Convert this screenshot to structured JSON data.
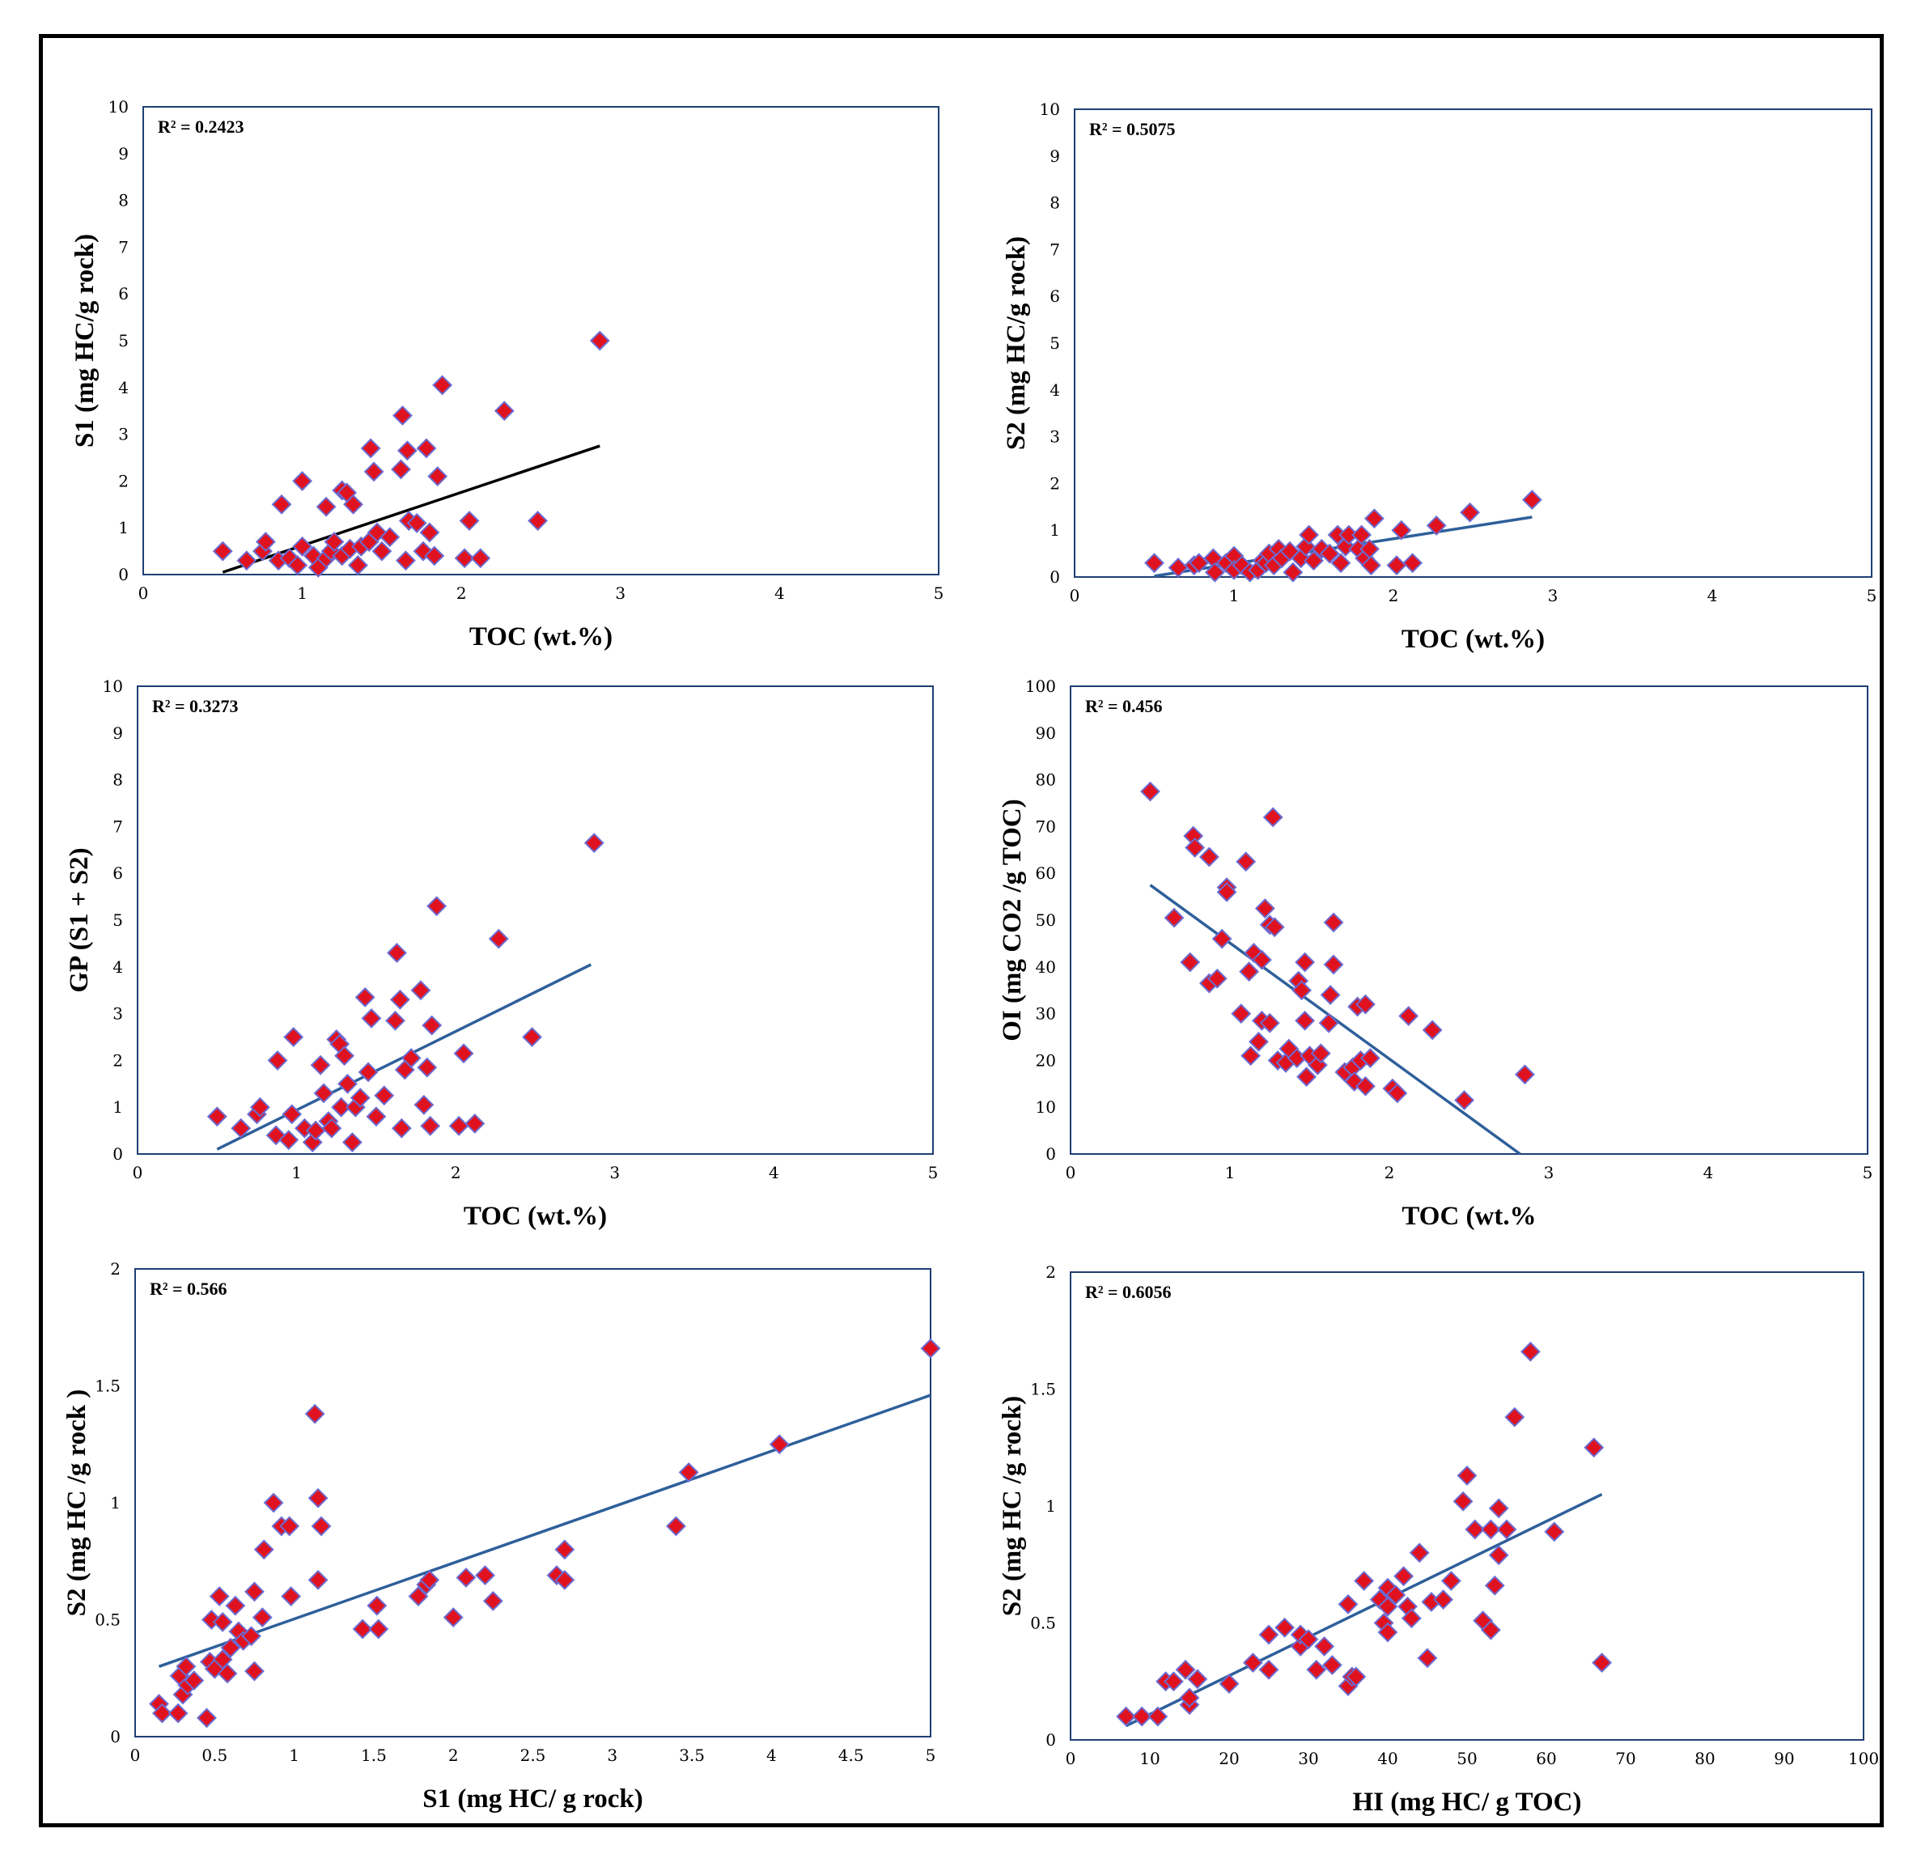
{
  "colors": {
    "marker_fill": "#e0121f",
    "marker_edge": "#6b6bd0",
    "trend_blue": "#2e5f9a",
    "trend_black": "#000000",
    "plot_border": "#1f3f73"
  },
  "chart_data": [
    {
      "type": "scatter",
      "title": "",
      "xlabel": "TOC (wt.%)",
      "ylabel": "S1 (mg HC/g rock)",
      "annotation": "R² = 0.2423",
      "xlim": [
        0,
        5
      ],
      "ylim": [
        0,
        10
      ],
      "xticks": [
        "0",
        "1",
        "2",
        "3",
        "4",
        "5"
      ],
      "yticks": [
        "0",
        "1",
        "2",
        "3",
        "4",
        "5",
        "6",
        "7",
        "8",
        "9",
        "10"
      ],
      "trendline": {
        "color": "black",
        "x": [
          0.5,
          2.87
        ],
        "y": [
          0.05,
          2.75
        ]
      },
      "points": [
        [
          0.5,
          0.5
        ],
        [
          0.65,
          0.3
        ],
        [
          0.75,
          0.5
        ],
        [
          0.77,
          0.7
        ],
        [
          0.85,
          0.3
        ],
        [
          0.87,
          1.5
        ],
        [
          0.92,
          0.35
        ],
        [
          0.97,
          0.2
        ],
        [
          1.0,
          0.6
        ],
        [
          1.0,
          2.0
        ],
        [
          1.07,
          0.4
        ],
        [
          1.1,
          0.15
        ],
        [
          1.15,
          0.35
        ],
        [
          1.15,
          1.45
        ],
        [
          1.18,
          0.5
        ],
        [
          1.2,
          0.7
        ],
        [
          1.25,
          0.4
        ],
        [
          1.25,
          1.8
        ],
        [
          1.28,
          1.75
        ],
        [
          1.3,
          0.55
        ],
        [
          1.32,
          1.5
        ],
        [
          1.35,
          0.2
        ],
        [
          1.37,
          0.6
        ],
        [
          1.42,
          0.7
        ],
        [
          1.43,
          2.7
        ],
        [
          1.45,
          2.2
        ],
        [
          1.47,
          0.9
        ],
        [
          1.5,
          0.5
        ],
        [
          1.55,
          0.8
        ],
        [
          1.62,
          2.25
        ],
        [
          1.63,
          3.4
        ],
        [
          1.65,
          0.3
        ],
        [
          1.66,
          2.65
        ],
        [
          1.67,
          1.15
        ],
        [
          1.72,
          1.1
        ],
        [
          1.76,
          0.5
        ],
        [
          1.78,
          2.7
        ],
        [
          1.8,
          0.9
        ],
        [
          1.83,
          0.4
        ],
        [
          1.85,
          2.1
        ],
        [
          1.88,
          4.05
        ],
        [
          2.02,
          0.35
        ],
        [
          2.05,
          1.15
        ],
        [
          2.12,
          0.35
        ],
        [
          2.27,
          3.5
        ],
        [
          2.48,
          1.15
        ],
        [
          2.87,
          5.0
        ]
      ]
    },
    {
      "type": "scatter",
      "title": "",
      "xlabel": "TOC (wt.%)",
      "ylabel": "S2 (mg HC/g rock)",
      "annotation": "R² = 0.5075",
      "xlim": [
        0,
        5
      ],
      "ylim": [
        0,
        10
      ],
      "xticks": [
        "0",
        "1",
        "2",
        "3",
        "4",
        "5"
      ],
      "yticks": [
        "0",
        "1",
        "2",
        "3",
        "4",
        "5",
        "6",
        "7",
        "8",
        "9",
        "10"
      ],
      "trendline": {
        "color": "blue",
        "x": [
          0.5,
          2.87
        ],
        "y": [
          0.02,
          1.28
        ]
      },
      "points": [
        [
          0.5,
          0.3
        ],
        [
          0.65,
          0.2
        ],
        [
          0.75,
          0.25
        ],
        [
          0.78,
          0.3
        ],
        [
          0.87,
          0.4
        ],
        [
          0.88,
          0.1
        ],
        [
          0.95,
          0.3
        ],
        [
          1.0,
          0.45
        ],
        [
          1.0,
          0.15
        ],
        [
          1.05,
          0.25
        ],
        [
          1.1,
          0.1
        ],
        [
          1.15,
          0.15
        ],
        [
          1.18,
          0.35
        ],
        [
          1.2,
          0.3
        ],
        [
          1.22,
          0.5
        ],
        [
          1.25,
          0.25
        ],
        [
          1.28,
          0.6
        ],
        [
          1.3,
          0.4
        ],
        [
          1.35,
          0.55
        ],
        [
          1.37,
          0.1
        ],
        [
          1.42,
          0.4
        ],
        [
          1.45,
          0.65
        ],
        [
          1.47,
          0.9
        ],
        [
          1.5,
          0.35
        ],
        [
          1.55,
          0.6
        ],
        [
          1.6,
          0.5
        ],
        [
          1.65,
          0.9
        ],
        [
          1.67,
          0.3
        ],
        [
          1.7,
          0.65
        ],
        [
          1.72,
          0.9
        ],
        [
          1.78,
          0.6
        ],
        [
          1.8,
          0.9
        ],
        [
          1.82,
          0.4
        ],
        [
          1.85,
          0.6
        ],
        [
          1.86,
          0.25
        ],
        [
          1.88,
          1.25
        ],
        [
          2.02,
          0.25
        ],
        [
          2.05,
          1.0
        ],
        [
          2.12,
          0.3
        ],
        [
          2.27,
          1.1
        ],
        [
          2.48,
          1.38
        ],
        [
          2.87,
          1.65
        ]
      ]
    },
    {
      "type": "scatter",
      "title": "",
      "xlabel": "TOC (wt.%)",
      "ylabel": "GP (S1 + S2)",
      "annotation": "R² = 0.3273",
      "xlim": [
        0,
        5
      ],
      "ylim": [
        0,
        10
      ],
      "xticks": [
        "0",
        "1",
        "2",
        "3",
        "4",
        "5"
      ],
      "yticks": [
        "0",
        "1",
        "2",
        "3",
        "4",
        "5",
        "6",
        "7",
        "8",
        "9",
        "10"
      ],
      "trendline": {
        "color": "blue",
        "x": [
          0.5,
          2.85
        ],
        "y": [
          0.1,
          4.05
        ]
      },
      "points": [
        [
          0.5,
          0.8
        ],
        [
          0.65,
          0.55
        ],
        [
          0.75,
          0.85
        ],
        [
          0.77,
          1.0
        ],
        [
          0.87,
          0.4
        ],
        [
          0.88,
          2.0
        ],
        [
          0.95,
          0.3
        ],
        [
          0.97,
          0.85
        ],
        [
          0.98,
          2.5
        ],
        [
          1.05,
          0.55
        ],
        [
          1.1,
          0.25
        ],
        [
          1.12,
          0.5
        ],
        [
          1.15,
          1.9
        ],
        [
          1.17,
          1.3
        ],
        [
          1.2,
          0.7
        ],
        [
          1.22,
          0.55
        ],
        [
          1.25,
          2.45
        ],
        [
          1.27,
          2.35
        ],
        [
          1.28,
          1.0
        ],
        [
          1.3,
          2.1
        ],
        [
          1.32,
          1.5
        ],
        [
          1.35,
          0.25
        ],
        [
          1.37,
          1.0
        ],
        [
          1.4,
          1.2
        ],
        [
          1.43,
          3.35
        ],
        [
          1.45,
          1.75
        ],
        [
          1.47,
          2.9
        ],
        [
          1.5,
          0.8
        ],
        [
          1.55,
          1.25
        ],
        [
          1.62,
          2.85
        ],
        [
          1.63,
          4.3
        ],
        [
          1.65,
          3.3
        ],
        [
          1.66,
          0.55
        ],
        [
          1.68,
          1.8
        ],
        [
          1.72,
          2.05
        ],
        [
          1.78,
          3.5
        ],
        [
          1.8,
          1.05
        ],
        [
          1.82,
          1.85
        ],
        [
          1.84,
          0.6
        ],
        [
          1.85,
          2.75
        ],
        [
          1.88,
          5.3
        ],
        [
          2.02,
          0.6
        ],
        [
          2.05,
          2.15
        ],
        [
          2.12,
          0.65
        ],
        [
          2.27,
          4.6
        ],
        [
          2.48,
          2.5
        ],
        [
          2.87,
          6.65
        ]
      ]
    },
    {
      "type": "scatter",
      "title": "",
      "xlabel": "TOC (wt.%",
      "ylabel": "OI (mg CO2 /g TOC)",
      "annotation": "R² = 0.456",
      "xlim": [
        0,
        5
      ],
      "ylim": [
        0,
        100
      ],
      "xticks": [
        "0",
        "1",
        "2",
        "3",
        "4",
        "5"
      ],
      "yticks": [
        "0",
        "10",
        "20",
        "30",
        "40",
        "50",
        "60",
        "70",
        "80",
        "90",
        "100"
      ],
      "trendline": {
        "color": "blue",
        "x": [
          0.5,
          2.82
        ],
        "y": [
          57.5,
          0
        ]
      },
      "points": [
        [
          0.5,
          77.5
        ],
        [
          0.65,
          50.5
        ],
        [
          0.75,
          41
        ],
        [
          0.77,
          68
        ],
        [
          0.78,
          65.5
        ],
        [
          0.87,
          63.5
        ],
        [
          0.87,
          36.5
        ],
        [
          0.92,
          37.5
        ],
        [
          0.95,
          46
        ],
        [
          0.98,
          57
        ],
        [
          0.98,
          56
        ],
        [
          1.07,
          30
        ],
        [
          1.1,
          62.5
        ],
        [
          1.12,
          39
        ],
        [
          1.13,
          21
        ],
        [
          1.15,
          43
        ],
        [
          1.18,
          24
        ],
        [
          1.2,
          41.5
        ],
        [
          1.2,
          28.5
        ],
        [
          1.22,
          52.5
        ],
        [
          1.25,
          28
        ],
        [
          1.25,
          49
        ],
        [
          1.27,
          72
        ],
        [
          1.28,
          48.5
        ],
        [
          1.3,
          20
        ],
        [
          1.35,
          19.5
        ],
        [
          1.37,
          22.5
        ],
        [
          1.42,
          20.5
        ],
        [
          1.43,
          37
        ],
        [
          1.45,
          35
        ],
        [
          1.47,
          41
        ],
        [
          1.47,
          28.5
        ],
        [
          1.48,
          16.5
        ],
        [
          1.5,
          21
        ],
        [
          1.55,
          19
        ],
        [
          1.57,
          21.5
        ],
        [
          1.62,
          28
        ],
        [
          1.63,
          34
        ],
        [
          1.65,
          40.5
        ],
        [
          1.65,
          49.5
        ],
        [
          1.72,
          17.5
        ],
        [
          1.77,
          18.5
        ],
        [
          1.78,
          15.5
        ],
        [
          1.8,
          31.5
        ],
        [
          1.82,
          20
        ],
        [
          1.85,
          14.5
        ],
        [
          1.85,
          32
        ],
        [
          1.88,
          20.5
        ],
        [
          2.02,
          14
        ],
        [
          2.05,
          13
        ],
        [
          2.12,
          29.5
        ],
        [
          2.27,
          26.5
        ],
        [
          2.47,
          11.5
        ],
        [
          2.85,
          17
        ]
      ]
    },
    {
      "type": "scatter",
      "title": "",
      "xlabel": "S1 (mg HC/ g rock)",
      "ylabel": "S2 (mg HC /g rock )",
      "annotation": "R² = 0.566",
      "xlim": [
        0,
        5
      ],
      "ylim": [
        0,
        2
      ],
      "xticks": [
        "0",
        "0.5",
        "1",
        "1.5",
        "2",
        "2.5",
        "3",
        "3.5",
        "4",
        "4.5",
        "5"
      ],
      "yticks": [
        "0",
        "0.5",
        "1",
        "1.5",
        "2"
      ],
      "trendline": {
        "color": "blue",
        "x": [
          0.15,
          5.0
        ],
        "y": [
          0.3,
          1.46
        ]
      },
      "points": [
        [
          0.15,
          0.14
        ],
        [
          0.17,
          0.1
        ],
        [
          0.27,
          0.1
        ],
        [
          0.28,
          0.26
        ],
        [
          0.3,
          0.18
        ],
        [
          0.32,
          0.3
        ],
        [
          0.33,
          0.22
        ],
        [
          0.37,
          0.24
        ],
        [
          0.45,
          0.08
        ],
        [
          0.47,
          0.32
        ],
        [
          0.48,
          0.5
        ],
        [
          0.5,
          0.29
        ],
        [
          0.53,
          0.6
        ],
        [
          0.55,
          0.49
        ],
        [
          0.55,
          0.33
        ],
        [
          0.58,
          0.27
        ],
        [
          0.6,
          0.38
        ],
        [
          0.63,
          0.56
        ],
        [
          0.65,
          0.45
        ],
        [
          0.68,
          0.41
        ],
        [
          0.73,
          0.43
        ],
        [
          0.75,
          0.62
        ],
        [
          0.75,
          0.28
        ],
        [
          0.8,
          0.51
        ],
        [
          0.81,
          0.8
        ],
        [
          0.87,
          1.0
        ],
        [
          0.92,
          0.9
        ],
        [
          0.97,
          0.9
        ],
        [
          0.98,
          0.6
        ],
        [
          1.13,
          1.38
        ],
        [
          1.15,
          1.02
        ],
        [
          1.15,
          0.67
        ],
        [
          1.17,
          0.9
        ],
        [
          1.43,
          0.46
        ],
        [
          1.52,
          0.56
        ],
        [
          1.53,
          0.46
        ],
        [
          1.78,
          0.6
        ],
        [
          1.83,
          0.65
        ],
        [
          1.85,
          0.67
        ],
        [
          2.0,
          0.51
        ],
        [
          2.08,
          0.68
        ],
        [
          2.2,
          0.69
        ],
        [
          2.25,
          0.58
        ],
        [
          2.65,
          0.69
        ],
        [
          2.7,
          0.67
        ],
        [
          2.7,
          0.8
        ],
        [
          3.4,
          0.9
        ],
        [
          3.48,
          1.13
        ],
        [
          4.05,
          1.25
        ],
        [
          5.0,
          1.66
        ]
      ]
    },
    {
      "type": "scatter",
      "title": "",
      "xlabel": "HI (mg HC/ g TOC)",
      "ylabel": "S2 (mg HC /g rock)",
      "annotation": "R² = 0.6056",
      "xlim": [
        0,
        100
      ],
      "ylim": [
        0,
        2
      ],
      "xticks": [
        "0",
        "10",
        "20",
        "30",
        "40",
        "50",
        "60",
        "70",
        "80",
        "90",
        "100"
      ],
      "yticks": [
        "0",
        "0.5",
        "1",
        "1.5",
        "2"
      ],
      "trendline": {
        "color": "blue",
        "x": [
          7,
          67
        ],
        "y": [
          0.06,
          1.05
        ]
      },
      "points": [
        [
          7,
          0.1
        ],
        [
          9,
          0.1
        ],
        [
          11,
          0.1
        ],
        [
          12,
          0.25
        ],
        [
          13,
          0.25
        ],
        [
          14.5,
          0.3
        ],
        [
          15,
          0.15
        ],
        [
          15,
          0.18
        ],
        [
          16,
          0.26
        ],
        [
          20,
          0.24
        ],
        [
          23,
          0.33
        ],
        [
          25,
          0.45
        ],
        [
          25,
          0.3
        ],
        [
          27,
          0.48
        ],
        [
          29,
          0.4
        ],
        [
          29,
          0.45
        ],
        [
          30,
          0.43
        ],
        [
          31,
          0.3
        ],
        [
          32,
          0.4
        ],
        [
          33,
          0.32
        ],
        [
          35,
          0.58
        ],
        [
          35,
          0.23
        ],
        [
          35.5,
          0.27
        ],
        [
          36,
          0.27
        ],
        [
          37,
          0.68
        ],
        [
          39,
          0.6
        ],
        [
          39.5,
          0.5
        ],
        [
          40,
          0.57
        ],
        [
          40,
          0.65
        ],
        [
          40,
          0.46
        ],
        [
          41,
          0.62
        ],
        [
          42,
          0.7
        ],
        [
          42.5,
          0.57
        ],
        [
          43,
          0.52
        ],
        [
          44,
          0.8
        ],
        [
          45,
          0.35
        ],
        [
          45.5,
          0.59
        ],
        [
          47,
          0.6
        ],
        [
          48,
          0.68
        ],
        [
          49.5,
          1.02
        ],
        [
          50,
          1.13
        ],
        [
          51,
          0.9
        ],
        [
          52,
          0.51
        ],
        [
          53,
          0.9
        ],
        [
          53,
          0.47
        ],
        [
          54,
          0.99
        ],
        [
          53.5,
          0.66
        ],
        [
          54,
          0.79
        ],
        [
          55,
          0.9
        ],
        [
          56,
          1.38
        ],
        [
          58,
          1.66
        ],
        [
          61,
          0.89
        ],
        [
          66,
          1.25
        ],
        [
          67,
          0.33
        ]
      ]
    }
  ]
}
